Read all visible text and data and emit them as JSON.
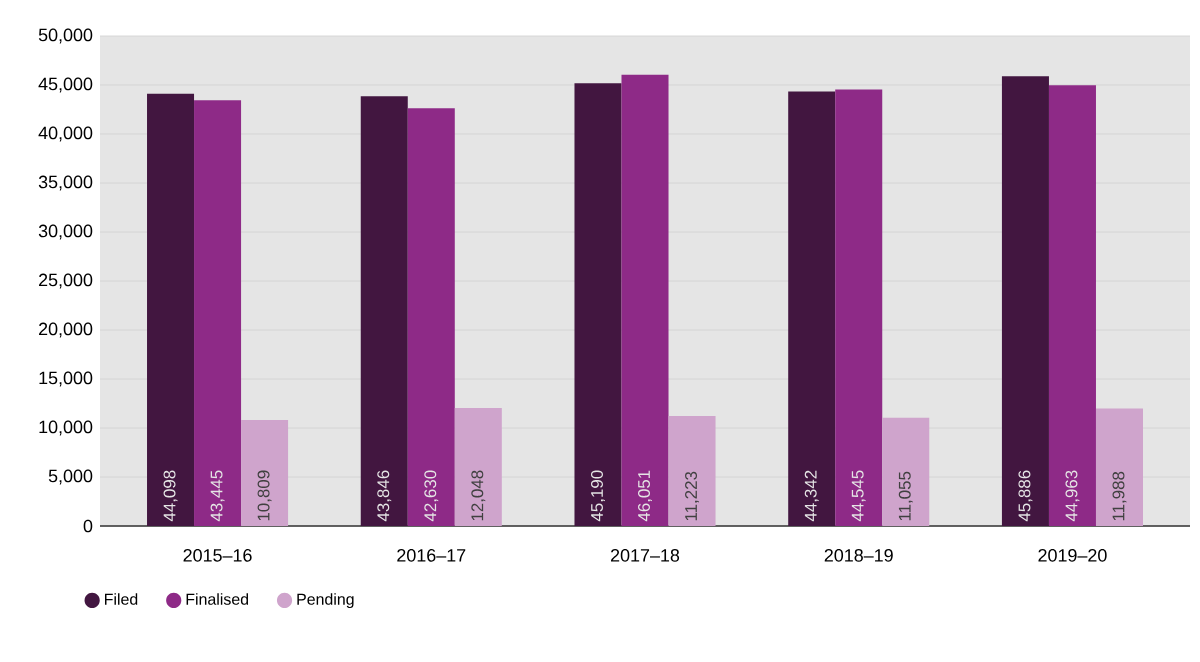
{
  "chart_data": {
    "type": "bar",
    "categories": [
      "2015–16",
      "2016–17",
      "2017–18",
      "2018–19",
      "2019–20"
    ],
    "series": [
      {
        "name": "Filed",
        "color": "#421640",
        "values": [
          44098,
          43846,
          45190,
          44342,
          45886
        ],
        "value_labels": [
          "44,098",
          "43,846",
          "45,190",
          "44,342",
          "45,886"
        ]
      },
      {
        "name": "Finalised",
        "color": "#8e2a87",
        "values": [
          43445,
          42630,
          46051,
          44545,
          44963
        ],
        "value_labels": [
          "43,445",
          "42,630",
          "46,051",
          "44,545",
          "44,963"
        ]
      },
      {
        "name": "Pending",
        "color": "#cfa4cc",
        "values": [
          10809,
          12048,
          11223,
          11055,
          11988
        ],
        "value_labels": [
          "10,809",
          "12,048",
          "11,223",
          "11,055",
          "11,988"
        ]
      }
    ],
    "ylim": [
      0,
      50000
    ],
    "yticks": [
      0,
      {
        "value": 5000,
        "label": "5,000"
      },
      {
        "value": 10000,
        "label": "10,000"
      },
      {
        "value": 15000,
        "label": "15,000"
      },
      {
        "value": 20000,
        "label": "20,000"
      },
      {
        "value": 25000,
        "label": "25,000"
      },
      {
        "value": 30000,
        "label": "30,000"
      },
      {
        "value": 35000,
        "label": "35,000"
      },
      {
        "value": 40000,
        "label": "40,000"
      },
      {
        "value": 45000,
        "label": "45,000"
      },
      {
        "value": 50000,
        "label": "50,000"
      }
    ],
    "grid": "y",
    "legend": "bottom left",
    "marker": "circle"
  }
}
